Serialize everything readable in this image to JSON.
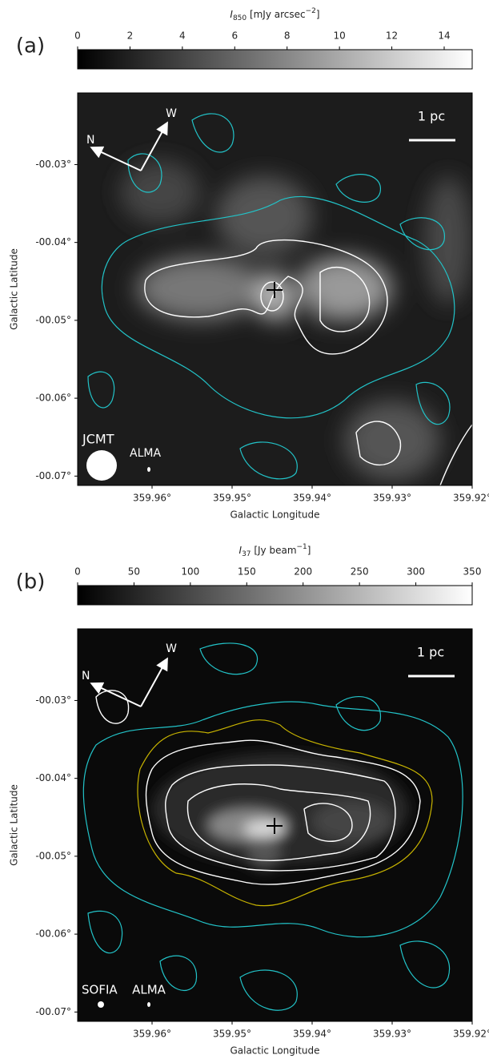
{
  "chart_data": [
    {
      "type": "image",
      "panel_label": "(a)",
      "colorbar_label": {
        "symbol": "I",
        "sub": "850",
        "unit": " [mJy arcsec",
        "sup": "−2",
        "end": "]"
      },
      "clim": [
        0,
        15.07
      ],
      "cticks": [
        0,
        2,
        4,
        6,
        8,
        10,
        12,
        14
      ],
      "xlabel": "Galactic Longitude",
      "ylabel": "Galactic Latitude",
      "xlim": [
        359.9693,
        359.92
      ],
      "xticks": [
        {
          "value": 359.96,
          "label": "359.96°"
        },
        {
          "value": 359.95,
          "label": "359.95°"
        },
        {
          "value": 359.94,
          "label": "359.94°"
        },
        {
          "value": 359.93,
          "label": "359.93°"
        },
        {
          "value": 359.92,
          "label": "359.92°"
        }
      ],
      "ylim": [
        -0.0712,
        -0.0208
      ],
      "yticks": [
        {
          "value": -0.03,
          "label": "-00.03°"
        },
        {
          "value": -0.04,
          "label": "-00.04°"
        },
        {
          "value": -0.05,
          "label": "-00.05°"
        },
        {
          "value": -0.06,
          "label": "-00.06°"
        },
        {
          "value": -0.07,
          "label": "-00.07°"
        }
      ],
      "annotations": {
        "north": "N",
        "west": "W",
        "scale": "1 pc",
        "beam1": "JCMT",
        "beam2": "ALMA"
      }
    },
    {
      "type": "image",
      "panel_label": "(b)",
      "colorbar_label": {
        "symbol": "I",
        "sub": "37",
        "unit": " [Jy beam",
        "sup": "−1",
        "end": "]"
      },
      "clim": [
        0,
        350
      ],
      "cticks": [
        0,
        50,
        100,
        150,
        200,
        250,
        300,
        350
      ],
      "xlabel": "Galactic Longitude",
      "ylabel": "Galactic Latitude",
      "xlim": [
        359.9693,
        359.92
      ],
      "xticks": [
        {
          "value": 359.96,
          "label": "359.96°"
        },
        {
          "value": 359.95,
          "label": "359.95°"
        },
        {
          "value": 359.94,
          "label": "359.94°"
        },
        {
          "value": 359.93,
          "label": "359.93°"
        },
        {
          "value": 359.92,
          "label": "359.92°"
        }
      ],
      "ylim": [
        -0.0712,
        -0.0208
      ],
      "yticks": [
        {
          "value": -0.03,
          "label": "-00.03°"
        },
        {
          "value": -0.04,
          "label": "-00.04°"
        },
        {
          "value": -0.05,
          "label": "-00.05°"
        },
        {
          "value": -0.06,
          "label": "-00.06°"
        },
        {
          "value": -0.07,
          "label": "-00.07°"
        }
      ],
      "annotations": {
        "north": "N",
        "west": "W",
        "scale": "1 pc",
        "beam1": "SOFIA",
        "beam2": "ALMA"
      }
    }
  ]
}
